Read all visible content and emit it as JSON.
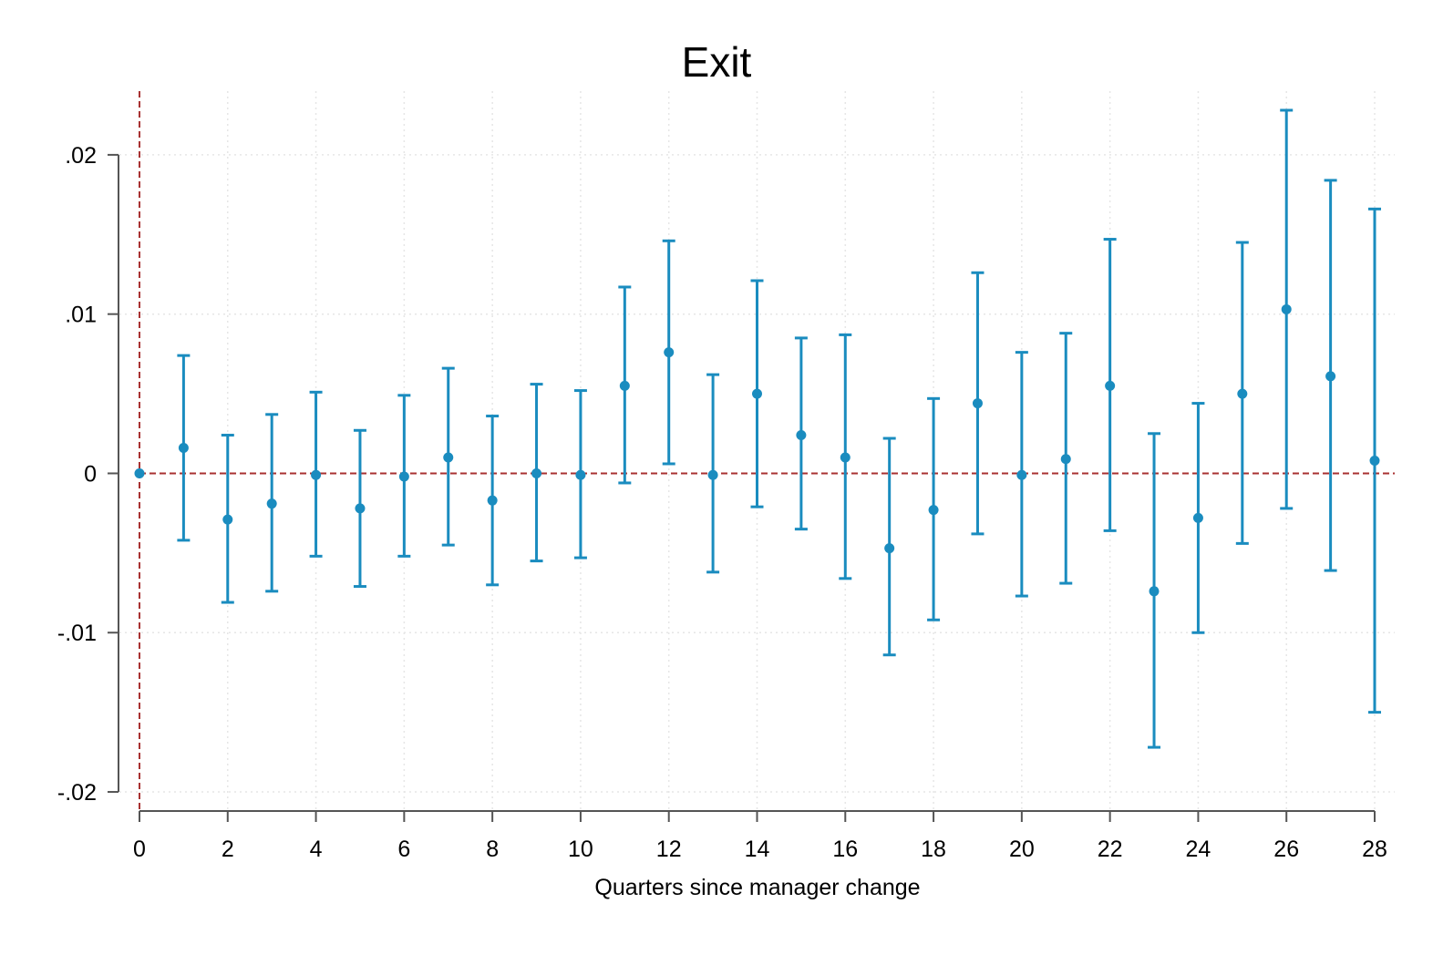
{
  "chart_data": {
    "type": "scatter",
    "title": "Exit",
    "xlabel": "Quarters since manager change",
    "ylabel": "",
    "xlim": [
      0,
      28
    ],
    "ylim": [
      -0.0212,
      0.024
    ],
    "xticks": [
      0,
      2,
      4,
      6,
      8,
      10,
      12,
      14,
      16,
      18,
      20,
      22,
      24,
      26,
      28
    ],
    "xtick_labels": [
      "0",
      "2",
      "4",
      "6",
      "8",
      "10",
      "12",
      "14",
      "16",
      "18",
      "20",
      "22",
      "24",
      "26",
      "28"
    ],
    "yticks": [
      -0.02,
      -0.01,
      0,
      0.01,
      0.02
    ],
    "ytick_labels": [
      "-.02",
      "-.01",
      "0",
      ".01",
      ".02"
    ],
    "grid": true,
    "reference_lines": {
      "x": 0,
      "y": 0,
      "color": "#a83232",
      "style": "dashed"
    },
    "series": [
      {
        "marker_color": "#1a8cbf",
        "x": [
          0,
          1,
          2,
          3,
          4,
          5,
          6,
          7,
          8,
          9,
          10,
          11,
          12,
          13,
          14,
          15,
          16,
          17,
          18,
          19,
          20,
          21,
          22,
          23,
          24,
          25,
          26,
          27,
          28
        ],
        "y": [
          0,
          0.0016,
          -0.0029,
          -0.0019,
          -0.0001,
          -0.0022,
          -0.0002,
          0.001,
          -0.0017,
          0,
          -0.0001,
          0.0055,
          0.0076,
          -0.0001,
          0.005,
          0.0024,
          0.001,
          -0.0047,
          -0.0023,
          0.0044,
          -0.0001,
          0.0009,
          0.0055,
          -0.0074,
          -0.0028,
          0.005,
          0.0103,
          0.0061,
          0.0008
        ],
        "ci_low": [
          0,
          -0.0042,
          -0.0081,
          -0.0074,
          -0.0052,
          -0.0071,
          -0.0052,
          -0.0045,
          -0.007,
          -0.0055,
          -0.0053,
          -0.0006,
          0.0006,
          -0.0062,
          -0.0021,
          -0.0035,
          -0.0066,
          -0.0114,
          -0.0092,
          -0.0038,
          -0.0077,
          -0.0069,
          -0.0036,
          -0.0172,
          -0.01,
          -0.0044,
          -0.0022,
          -0.0061,
          -0.015
        ],
        "ci_high": [
          0,
          0.0074,
          0.0024,
          0.0037,
          0.0051,
          0.0027,
          0.0049,
          0.0066,
          0.0036,
          0.0056,
          0.0052,
          0.0117,
          0.0146,
          0.0062,
          0.0121,
          0.0085,
          0.0087,
          0.0022,
          0.0047,
          0.0126,
          0.0076,
          0.0088,
          0.0147,
          0.0025,
          0.0044,
          0.0145,
          0.0228,
          0.0184,
          0.0166
        ]
      }
    ]
  }
}
